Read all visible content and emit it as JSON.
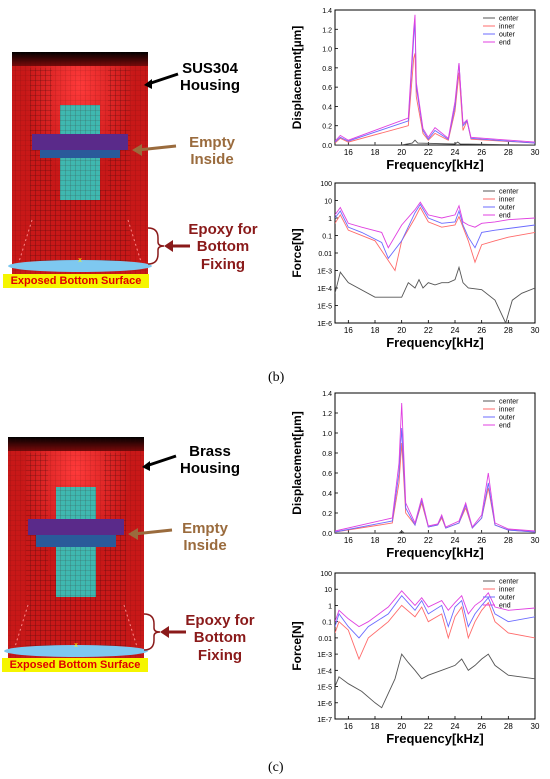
{
  "panel_b": {
    "caption": "(b)",
    "housing_label": [
      "SUS304",
      "Housing"
    ],
    "empty_label": [
      "Empty",
      "Inside"
    ],
    "epoxy_label": [
      "Epoxy for",
      "Bottom",
      "Fixing"
    ],
    "exposed_label": "Exposed Bottom Surface"
  },
  "panel_c": {
    "caption": "(c)",
    "housing_label": [
      "Brass",
      "Housing"
    ],
    "empty_label": [
      "Empty",
      "Inside"
    ],
    "epoxy_label": [
      "Epoxy for",
      "Bottom",
      "Fixing"
    ],
    "exposed_label": "Exposed Bottom Surface"
  },
  "colors": {
    "center": "#555555",
    "inner": "#ff6b6b",
    "outer": "#6b6bff",
    "end": "#e040e0",
    "housing_red": "#d81e1e",
    "cyan_core": "#3fb8b0",
    "purple_band": "#5a2a8a",
    "label_brown": "#9a6b3d",
    "label_red": "#8a1a1a"
  },
  "chart_data": [
    {
      "id": "b-disp",
      "type": "line",
      "xlabel": "Frequency[kHz]",
      "ylabel": "Displacement[µm]",
      "xlim": [
        15,
        30
      ],
      "ylim": [
        0,
        1.4
      ],
      "x_ticks": [
        "16",
        "18",
        "20",
        "22",
        "24",
        "26",
        "28",
        "30"
      ],
      "y_ticks": [
        "0.0",
        "0.2",
        "0.4",
        "0.6",
        "0.8",
        "1.0",
        "1.2",
        "1.4"
      ],
      "legend": [
        "center",
        "inner",
        "outer",
        "end"
      ],
      "series": [
        {
          "name": "center",
          "x": [
            15,
            20,
            20.8,
            21,
            21.2,
            24,
            24.2,
            24.4,
            30
          ],
          "y": [
            0,
            0,
            0.02,
            0.05,
            0.02,
            0.01,
            0.03,
            0.01,
            0
          ]
        },
        {
          "name": "inner",
          "x": [
            15,
            15.4,
            16,
            20.5,
            20.9,
            21,
            21.1,
            21.6,
            22,
            22.5,
            23.5,
            24.0,
            24.3,
            24.6,
            24.9,
            25.2,
            30
          ],
          "y": [
            0.02,
            0.07,
            0.03,
            0.2,
            0.9,
            0.95,
            0.5,
            0.12,
            0.05,
            0.12,
            0.05,
            0.35,
            0.75,
            0.15,
            0.25,
            0.06,
            0.02
          ]
        },
        {
          "name": "outer",
          "x": [
            15,
            15.4,
            16,
            20.5,
            20.9,
            21,
            21.1,
            21.6,
            22,
            22.5,
            23.5,
            24.0,
            24.3,
            24.6,
            24.9,
            25.2,
            30
          ],
          "y": [
            0.03,
            0.08,
            0.04,
            0.25,
            1.1,
            1.3,
            0.6,
            0.15,
            0.06,
            0.15,
            0.06,
            0.4,
            0.85,
            0.2,
            0.25,
            0.07,
            0.02
          ]
        },
        {
          "name": "end",
          "x": [
            15,
            15.4,
            16,
            20.5,
            20.9,
            21,
            21.1,
            21.6,
            22,
            22.5,
            23.5,
            24.0,
            24.3,
            24.6,
            24.9,
            25.2,
            30
          ],
          "y": [
            0.04,
            0.1,
            0.05,
            0.28,
            1.2,
            1.35,
            0.65,
            0.17,
            0.08,
            0.18,
            0.07,
            0.45,
            0.85,
            0.22,
            0.26,
            0.08,
            0.03
          ]
        }
      ]
    },
    {
      "id": "b-force",
      "type": "line",
      "log_y": true,
      "xlabel": "Frequency[kHz]",
      "ylabel": "Force[N]",
      "xlim": [
        15,
        30
      ],
      "ylim_exp": [
        -6,
        2
      ],
      "x_ticks": [
        "16",
        "18",
        "20",
        "22",
        "24",
        "26",
        "28",
        "30"
      ],
      "y_ticks": [
        "1E-6",
        "1E-5",
        "1E-4",
        "1E-3",
        "0.01",
        "0.1",
        "1",
        "10",
        "100"
      ],
      "legend": [
        "center",
        "inner",
        "outer",
        "end"
      ],
      "series": [
        {
          "name": "center",
          "x": [
            15,
            15.4,
            16,
            18,
            20,
            20.5,
            21,
            21.3,
            21.6,
            22,
            22.5,
            23,
            23.5,
            24,
            24.3,
            24.6,
            25,
            26,
            27,
            27.8,
            28.3,
            29,
            30
          ],
          "y": [
            5e-05,
            0.0008,
            0.0002,
            3e-05,
            3e-05,
            0.0002,
            0.0001,
            0.0003,
            0.0001,
            0.0002,
            0.00015,
            0.0002,
            0.0002,
            0.0003,
            0.0015,
            0.0002,
            0.0001,
            8e-05,
            2e-05,
            1e-06,
            2e-05,
            5e-05,
            0.0001
          ]
        },
        {
          "name": "inner",
          "x": [
            15,
            15.4,
            16,
            18,
            19.5,
            20,
            21,
            21.4,
            22,
            23,
            24,
            24.3,
            24.6,
            25,
            25.5,
            26,
            27,
            28,
            30
          ],
          "y": [
            0.5,
            1.5,
            0.2,
            0.05,
            0.001,
            0.05,
            1,
            4,
            0.6,
            0.3,
            0.4,
            1.2,
            0.3,
            0.05,
            0.003,
            0.03,
            0.05,
            0.08,
            0.15
          ]
        },
        {
          "name": "outer",
          "x": [
            15,
            15.4,
            16,
            17,
            18.5,
            19,
            20,
            21,
            21.4,
            22,
            23,
            24,
            24.3,
            24.6,
            25,
            25.5,
            26,
            27,
            28,
            30
          ],
          "y": [
            1,
            2.5,
            0.3,
            0.15,
            0.04,
            0.005,
            0.05,
            2,
            6,
            1,
            0.5,
            0.6,
            2.5,
            0.4,
            0.08,
            0.02,
            0.15,
            0.2,
            0.25,
            0.4
          ]
        },
        {
          "name": "end",
          "x": [
            15,
            15.4,
            16,
            17,
            18.5,
            19,
            20,
            21,
            21.4,
            22,
            23,
            24,
            24.3,
            24.6,
            25,
            25.5,
            26,
            27,
            28,
            30
          ],
          "y": [
            1.5,
            4,
            0.5,
            0.3,
            0.15,
            0.02,
            0.4,
            3,
            8,
            1.5,
            1,
            1.5,
            5,
            0.6,
            0.4,
            0.3,
            0.5,
            0.6,
            0.8,
            1
          ]
        }
      ]
    },
    {
      "id": "c-disp",
      "type": "line",
      "xlabel": "Frequency[kHz]",
      "ylabel": "Displacement[µm]",
      "xlim": [
        15,
        30
      ],
      "ylim": [
        0,
        1.4
      ],
      "x_ticks": [
        "16",
        "18",
        "20",
        "22",
        "24",
        "26",
        "28",
        "30"
      ],
      "y_ticks": [
        "0.0",
        "0.2",
        "0.4",
        "0.6",
        "0.8",
        "1.0",
        "1.2",
        "1.4"
      ],
      "legend": [
        "center",
        "inner",
        "outer",
        "end"
      ],
      "series": [
        {
          "name": "center",
          "x": [
            15,
            19.8,
            20,
            20.2,
            30
          ],
          "y": [
            0,
            0,
            0.02,
            0,
            0
          ]
        },
        {
          "name": "inner",
          "x": [
            15,
            19.3,
            19.8,
            20,
            20.3,
            21,
            21.5,
            22,
            22.7,
            23,
            23.3,
            24.3,
            24.8,
            25.3,
            26,
            26.5,
            27,
            28,
            30
          ],
          "y": [
            0.01,
            0.1,
            0.5,
            0.9,
            0.2,
            0.08,
            0.3,
            0.06,
            0.08,
            0.15,
            0.05,
            0.1,
            0.25,
            0.05,
            0.15,
            0.45,
            0.08,
            0.03,
            0.01
          ]
        },
        {
          "name": "outer",
          "x": [
            15,
            19.3,
            19.8,
            20,
            20.3,
            21,
            21.5,
            22,
            22.7,
            23,
            23.3,
            24.3,
            24.8,
            25.3,
            26,
            26.5,
            27,
            28,
            30
          ],
          "y": [
            0.01,
            0.12,
            0.6,
            1.05,
            0.25,
            0.08,
            0.33,
            0.06,
            0.08,
            0.17,
            0.05,
            0.1,
            0.28,
            0.05,
            0.15,
            0.5,
            0.08,
            0.03,
            0.01
          ]
        },
        {
          "name": "end",
          "x": [
            15,
            19.3,
            19.8,
            20,
            20.3,
            21,
            21.5,
            22,
            22.7,
            23,
            23.3,
            24.3,
            24.8,
            25.3,
            26,
            26.5,
            27,
            28,
            30
          ],
          "y": [
            0.02,
            0.15,
            0.7,
            1.3,
            0.3,
            0.1,
            0.35,
            0.07,
            0.09,
            0.18,
            0.06,
            0.12,
            0.3,
            0.06,
            0.18,
            0.6,
            0.1,
            0.04,
            0.02
          ]
        }
      ]
    },
    {
      "id": "c-force",
      "type": "line",
      "log_y": true,
      "xlabel": "Frequency[kHz]",
      "ylabel": "Force[N]",
      "xlim": [
        15,
        30
      ],
      "ylim_exp": [
        -7,
        2
      ],
      "x_ticks": [
        "16",
        "18",
        "20",
        "22",
        "24",
        "26",
        "28",
        "30"
      ],
      "y_ticks": [
        "1E-7",
        "1E-6",
        "1E-5",
        "1E-4",
        "1E-3",
        "0.01",
        "0.1",
        "1",
        "10",
        "100"
      ],
      "legend": [
        "center",
        "inner",
        "outer",
        "end"
      ],
      "series": [
        {
          "name": "center",
          "x": [
            15,
            15.3,
            16,
            17,
            18,
            18.5,
            19.5,
            20,
            20.5,
            21,
            21.5,
            22,
            23,
            24,
            24.5,
            25,
            25.5,
            26,
            26.5,
            27,
            28,
            30
          ],
          "y": [
            1e-05,
            4e-05,
            1.5e-05,
            5e-06,
            1e-06,
            5e-07,
            3e-05,
            0.001,
            0.0003,
            0.0001,
            3e-05,
            5e-05,
            0.0001,
            0.0002,
            0.0005,
            0.0001,
            0.0002,
            0.0005,
            0.001,
            0.0002,
            5e-05,
            3e-05
          ]
        },
        {
          "name": "inner",
          "x": [
            15,
            15.3,
            16,
            16.8,
            17.5,
            19,
            20,
            21,
            21.5,
            22,
            23,
            23.5,
            24,
            24.5,
            25,
            25.5,
            26,
            26.5,
            27,
            28,
            30
          ],
          "y": [
            0.02,
            0.1,
            0.03,
            0.0005,
            0.01,
            0.1,
            1,
            0.2,
            0.8,
            0.1,
            0.3,
            0.01,
            0.2,
            0.8,
            0.01,
            0.1,
            0.5,
            1.5,
            0.1,
            0.02,
            0.01
          ]
        },
        {
          "name": "outer",
          "x": [
            15,
            15.3,
            16,
            16.8,
            17.5,
            19,
            20,
            21,
            21.5,
            22,
            23,
            23.5,
            24,
            24.5,
            25,
            25.5,
            26,
            26.5,
            27,
            28,
            30
          ],
          "y": [
            0.05,
            0.3,
            0.05,
            0.01,
            0.05,
            0.3,
            4,
            0.5,
            2,
            0.3,
            1,
            0.05,
            0.8,
            2,
            0.05,
            0.3,
            1,
            3,
            0.3,
            0.1,
            0.2
          ]
        },
        {
          "name": "end",
          "x": [
            15,
            15.3,
            16,
            16.8,
            17.5,
            19,
            20,
            21,
            21.5,
            22,
            23,
            23.5,
            24,
            24.5,
            25,
            25.5,
            26,
            26.5,
            27,
            28,
            30
          ],
          "y": [
            0.1,
            0.5,
            0.15,
            0.05,
            0.1,
            0.8,
            8,
            1,
            3,
            0.8,
            2,
            0.5,
            1.5,
            4,
            0.3,
            1,
            2,
            6,
            0.8,
            0.5,
            0.7
          ]
        }
      ]
    }
  ]
}
